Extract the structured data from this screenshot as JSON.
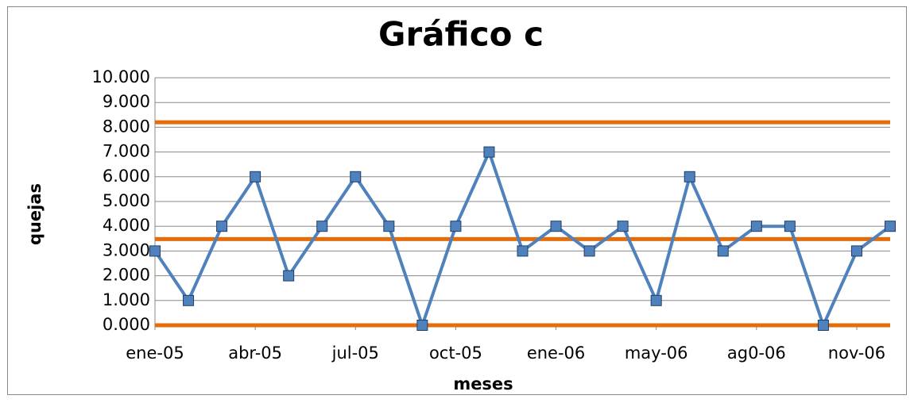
{
  "chart_data": {
    "type": "line",
    "title": "Gráfico c",
    "x_label": "meses",
    "y_label": "quejas",
    "categories": [
      "ene-05",
      null,
      null,
      "abr-05",
      null,
      null,
      "jul-05",
      null,
      null,
      "oct-05",
      null,
      null,
      "ene-06",
      null,
      null,
      "may-06",
      null,
      null,
      "ag0-06",
      null,
      null,
      "nov-06",
      null
    ],
    "series": [
      {
        "color": "#4f81bd",
        "values": [
          3,
          1,
          4,
          6,
          2,
          4,
          6,
          4,
          0,
          4,
          7,
          3,
          4,
          3,
          4,
          1,
          6,
          3,
          4,
          4,
          0,
          3,
          4
        ]
      }
    ],
    "reference_lines": [
      {
        "value": 8.2,
        "color": "#e46c0a"
      },
      {
        "value": 3.48,
        "color": "#e46c0a"
      },
      {
        "value": 0,
        "color": "#e46c0a"
      }
    ],
    "ylim": [
      0,
      10
    ],
    "yticks": [
      {
        "value": 0,
        "label": "0.000"
      },
      {
        "value": 1,
        "label": "1.000"
      },
      {
        "value": 2,
        "label": "2.000"
      },
      {
        "value": 3,
        "label": "3.000"
      },
      {
        "value": 4,
        "label": "4.000"
      },
      {
        "value": 5,
        "label": "5.000"
      },
      {
        "value": 6,
        "label": "6.000"
      },
      {
        "value": 7,
        "label": "7.000"
      },
      {
        "value": 8,
        "label": "8.000"
      },
      {
        "value": 9,
        "label": "9.000"
      },
      {
        "value": 10,
        "label": "10.000"
      }
    ],
    "grid": true
  }
}
